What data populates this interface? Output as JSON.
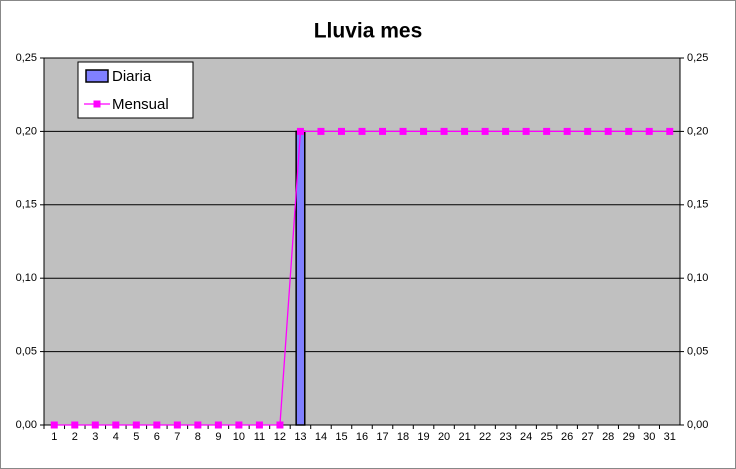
{
  "chart_data": {
    "type": "bar",
    "title": "Lluvia mes",
    "categories": [
      "1",
      "2",
      "3",
      "4",
      "5",
      "6",
      "7",
      "8",
      "9",
      "10",
      "11",
      "12",
      "13",
      "14",
      "15",
      "16",
      "17",
      "18",
      "19",
      "20",
      "21",
      "22",
      "23",
      "24",
      "25",
      "26",
      "27",
      "28",
      "29",
      "30",
      "31"
    ],
    "series": [
      {
        "name": "Diaria",
        "type": "bar",
        "color": "#8080ff",
        "values": [
          0,
          0,
          0,
          0,
          0,
          0,
          0,
          0,
          0,
          0,
          0,
          0,
          0.2,
          0,
          0,
          0,
          0,
          0,
          0,
          0,
          0,
          0,
          0,
          0,
          0,
          0,
          0,
          0,
          0,
          0,
          0
        ]
      },
      {
        "name": "Mensual",
        "type": "line",
        "axis": "y2",
        "color": "#ff00ff",
        "values": [
          0,
          0,
          0,
          0,
          0,
          0,
          0,
          0,
          0,
          0,
          0,
          0,
          0.2,
          0.2,
          0.2,
          0.2,
          0.2,
          0.2,
          0.2,
          0.2,
          0.2,
          0.2,
          0.2,
          0.2,
          0.2,
          0.2,
          0.2,
          0.2,
          0.2,
          0.2,
          0.2
        ]
      }
    ],
    "ylim": [
      0,
      0.25
    ],
    "yticks": [
      {
        "value": 0,
        "label": "0,00"
      },
      {
        "value": 0.05,
        "label": "0,05"
      },
      {
        "value": 0.1,
        "label": "0,10"
      },
      {
        "value": 0.15,
        "label": "0,15"
      },
      {
        "value": 0.2,
        "label": "0,20"
      },
      {
        "value": 0.25,
        "label": "0,25"
      }
    ],
    "y2lim": [
      0,
      0.25
    ],
    "y2ticks": [
      {
        "value": 0,
        "label": "0,00"
      },
      {
        "value": 0.05,
        "label": "0,05"
      },
      {
        "value": 0.1,
        "label": "0,10"
      },
      {
        "value": 0.15,
        "label": "0,15"
      },
      {
        "value": 0.2,
        "label": "0,20"
      },
      {
        "value": 0.25,
        "label": "0,25"
      }
    ],
    "grid": true,
    "legend": "top-left"
  }
}
